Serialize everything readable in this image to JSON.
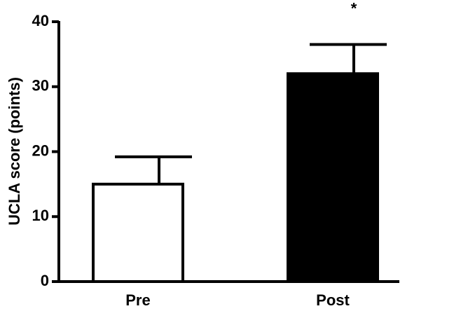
{
  "chart_data": {
    "type": "bar",
    "y_label": "UCLA score (points)",
    "categories": [
      "Pre",
      "Post"
    ],
    "values": [
      15,
      32
    ],
    "errors": [
      4.2,
      4.5
    ],
    "colors": [
      "#ffffff",
      "#000000"
    ],
    "ylim": [
      0,
      40
    ],
    "yticks": [
      0,
      10,
      20,
      30,
      40
    ],
    "annotations": [
      {
        "category": "Post",
        "text": "*"
      }
    ]
  }
}
